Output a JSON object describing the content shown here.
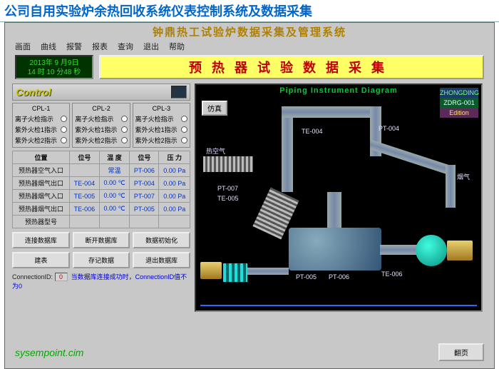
{
  "page_title": "公司自用实验炉余热回收系统仪表控制系统及数据采集",
  "app_title": "钟鼎热工试验炉数据采集及管理系统",
  "menu": [
    "画面",
    "曲线",
    "报警",
    "报表",
    "查询",
    "退出",
    "帮助"
  ],
  "clock": {
    "line1": "2013年 9 月9日",
    "line2": "14 时 10 分48 秒"
  },
  "banner": "预热器试验数据采集",
  "control_label": "Control",
  "cpl": [
    {
      "name": "CPL-1",
      "rows": [
        "离子火检指示",
        "紫外火检1指示",
        "紫外火检2指示"
      ]
    },
    {
      "name": "CPL-2",
      "rows": [
        "离子火检指示",
        "紫外火检1指示",
        "紫外火检2指示"
      ]
    },
    {
      "name": "CPL-3",
      "rows": [
        "离子火检指示",
        "紫外火检1指示",
        "紫外火检2指示"
      ]
    }
  ],
  "table": {
    "headers": [
      "位置",
      "位号",
      "温 度",
      "位号",
      "压 力"
    ],
    "rows": [
      {
        "c0": "预热器空气入口",
        "c1": "",
        "c2": "常温",
        "c3": "PT-006",
        "c4": "0.00 Pa"
      },
      {
        "c0": "预热器烟气出口",
        "c1": "TE-004",
        "c2": "0.00 ℃",
        "c3": "PT-004",
        "c4": "0.00 Pa"
      },
      {
        "c0": "预热器烟气入口",
        "c1": "TE-005",
        "c2": "0.00 ℃",
        "c3": "PT-007",
        "c4": "0.00 Pa"
      },
      {
        "c0": "预热器烟气出口",
        "c1": "TE-006",
        "c2": "0.00 ℃",
        "c3": "PT-005",
        "c4": "0.00 Pa"
      },
      {
        "c0": "预热器型号",
        "c1": "",
        "c2": "",
        "c3": "",
        "c4": ""
      }
    ]
  },
  "buttons_row1": [
    "连接数据库",
    "断开数据库",
    "数据初始化"
  ],
  "buttons_row2": [
    "建表",
    "存记数据",
    "退出数据库"
  ],
  "conn": {
    "label": "ConnectionID:",
    "value": "0",
    "msg": "当数据库连接成功时，ConnectionID值不为0"
  },
  "diagram": {
    "title": "Piping  Instrument Diagram",
    "badge": [
      "ZHONGDING",
      "ZDRG-001",
      "Edition"
    ],
    "btn_sim": "仿真",
    "labels": {
      "hot_air": "热空气",
      "exhaust": "烟气",
      "te004": "TE-004",
      "pt004": "PT-004",
      "pt007": "PT-007",
      "te005": "TE-005",
      "pt005": "PT-005",
      "pt006": "PT-006",
      "te006": "TE-006"
    }
  },
  "footer": {
    "url": "sysempoint.cim",
    "back": "翻页"
  }
}
